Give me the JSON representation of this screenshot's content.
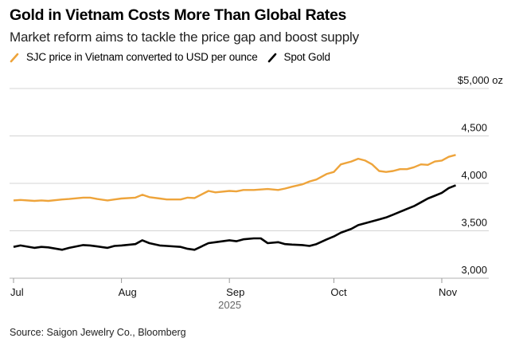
{
  "title": "Gold in Vietnam Costs More Than Global Rates",
  "subtitle": "Market reform aims to tackle the price gap and boost supply",
  "source": "Source: Saigon Jewelry Co., Bloomberg",
  "colors": {
    "sjc": "#eea43b",
    "spot": "#000000",
    "grid": "#d4d4d4",
    "axis": "#cccccc",
    "year": "#666666"
  },
  "chart_data": {
    "type": "line",
    "title": "Gold in Vietnam Costs More Than Global Rates",
    "subtitle": "Market reform aims to tackle the price gap and boost supply",
    "xlabel": "2025",
    "ylabel": "$ oz",
    "ylim": [
      3000,
      5000
    ],
    "yticks": [
      3000,
      3500,
      4000,
      4500,
      5000
    ],
    "ytick_labels": [
      "3,000",
      "3,500",
      "4,000",
      "4,500",
      "$5,000 oz"
    ],
    "xticks": [
      "2025-07-01",
      "2025-08-01",
      "2025-09-01",
      "2025-10-01",
      "2025-11-01"
    ],
    "xtick_labels": [
      "Jul",
      "Aug",
      "Sep",
      "Oct",
      "Nov"
    ],
    "x_year_label": "2025",
    "xlim": [
      "2025-07-01",
      "2025-11-05"
    ],
    "grid": true,
    "legend_position": "top-left",
    "series": [
      {
        "name": "SJC price in Vietnam converted to USD per ounce",
        "color": "#eea43b",
        "points": [
          [
            "2025-07-01",
            3820
          ],
          [
            "2025-07-03",
            3825
          ],
          [
            "2025-07-07",
            3815
          ],
          [
            "2025-07-09",
            3820
          ],
          [
            "2025-07-11",
            3815
          ],
          [
            "2025-07-15",
            3830
          ],
          [
            "2025-07-17",
            3835
          ],
          [
            "2025-07-21",
            3850
          ],
          [
            "2025-07-23",
            3850
          ],
          [
            "2025-07-25",
            3835
          ],
          [
            "2025-07-28",
            3820
          ],
          [
            "2025-07-30",
            3830
          ],
          [
            "2025-08-01",
            3840
          ],
          [
            "2025-08-05",
            3850
          ],
          [
            "2025-08-07",
            3880
          ],
          [
            "2025-08-09",
            3855
          ],
          [
            "2025-08-12",
            3840
          ],
          [
            "2025-08-14",
            3830
          ],
          [
            "2025-08-18",
            3830
          ],
          [
            "2025-08-20",
            3850
          ],
          [
            "2025-08-22",
            3845
          ],
          [
            "2025-08-26",
            3920
          ],
          [
            "2025-08-28",
            3905
          ],
          [
            "2025-09-01",
            3920
          ],
          [
            "2025-09-03",
            3915
          ],
          [
            "2025-09-05",
            3930
          ],
          [
            "2025-09-08",
            3930
          ],
          [
            "2025-09-10",
            3935
          ],
          [
            "2025-09-12",
            3940
          ],
          [
            "2025-09-15",
            3930
          ],
          [
            "2025-09-17",
            3945
          ],
          [
            "2025-09-19",
            3965
          ],
          [
            "2025-09-22",
            3990
          ],
          [
            "2025-09-24",
            4020
          ],
          [
            "2025-09-26",
            4040
          ],
          [
            "2025-09-29",
            4100
          ],
          [
            "2025-10-01",
            4120
          ],
          [
            "2025-10-03",
            4200
          ],
          [
            "2025-10-06",
            4230
          ],
          [
            "2025-10-08",
            4260
          ],
          [
            "2025-10-10",
            4240
          ],
          [
            "2025-10-12",
            4200
          ],
          [
            "2025-10-14",
            4130
          ],
          [
            "2025-10-16",
            4120
          ],
          [
            "2025-10-18",
            4130
          ],
          [
            "2025-10-20",
            4150
          ],
          [
            "2025-10-22",
            4150
          ],
          [
            "2025-10-24",
            4170
          ],
          [
            "2025-10-26",
            4200
          ],
          [
            "2025-10-28",
            4195
          ],
          [
            "2025-10-30",
            4230
          ],
          [
            "2025-11-01",
            4240
          ],
          [
            "2025-11-03",
            4280
          ],
          [
            "2025-11-05",
            4300
          ]
        ]
      },
      {
        "name": "Spot Gold",
        "color": "#000000",
        "points": [
          [
            "2025-07-01",
            3330
          ],
          [
            "2025-07-03",
            3345
          ],
          [
            "2025-07-07",
            3320
          ],
          [
            "2025-07-09",
            3330
          ],
          [
            "2025-07-11",
            3325
          ],
          [
            "2025-07-15",
            3300
          ],
          [
            "2025-07-17",
            3320
          ],
          [
            "2025-07-21",
            3350
          ],
          [
            "2025-07-23",
            3345
          ],
          [
            "2025-07-25",
            3335
          ],
          [
            "2025-07-28",
            3320
          ],
          [
            "2025-07-30",
            3340
          ],
          [
            "2025-08-01",
            3345
          ],
          [
            "2025-08-05",
            3360
          ],
          [
            "2025-08-07",
            3400
          ],
          [
            "2025-08-09",
            3370
          ],
          [
            "2025-08-12",
            3345
          ],
          [
            "2025-08-14",
            3340
          ],
          [
            "2025-08-18",
            3330
          ],
          [
            "2025-08-20",
            3310
          ],
          [
            "2025-08-22",
            3300
          ],
          [
            "2025-08-26",
            3370
          ],
          [
            "2025-08-28",
            3380
          ],
          [
            "2025-09-01",
            3400
          ],
          [
            "2025-09-03",
            3390
          ],
          [
            "2025-09-05",
            3410
          ],
          [
            "2025-09-08",
            3420
          ],
          [
            "2025-09-10",
            3420
          ],
          [
            "2025-09-12",
            3370
          ],
          [
            "2025-09-15",
            3380
          ],
          [
            "2025-09-17",
            3360
          ],
          [
            "2025-09-19",
            3355
          ],
          [
            "2025-09-22",
            3350
          ],
          [
            "2025-09-24",
            3340
          ],
          [
            "2025-09-26",
            3360
          ],
          [
            "2025-09-29",
            3410
          ],
          [
            "2025-10-01",
            3440
          ],
          [
            "2025-10-03",
            3480
          ],
          [
            "2025-10-06",
            3520
          ],
          [
            "2025-10-08",
            3560
          ],
          [
            "2025-10-10",
            3580
          ],
          [
            "2025-10-12",
            3600
          ],
          [
            "2025-10-14",
            3620
          ],
          [
            "2025-10-16",
            3640
          ],
          [
            "2025-10-18",
            3670
          ],
          [
            "2025-10-20",
            3700
          ],
          [
            "2025-10-22",
            3730
          ],
          [
            "2025-10-24",
            3760
          ],
          [
            "2025-10-26",
            3800
          ],
          [
            "2025-10-28",
            3840
          ],
          [
            "2025-10-30",
            3870
          ],
          [
            "2025-11-01",
            3900
          ],
          [
            "2025-11-03",
            3950
          ],
          [
            "2025-11-05",
            3980
          ]
        ]
      }
    ]
  }
}
